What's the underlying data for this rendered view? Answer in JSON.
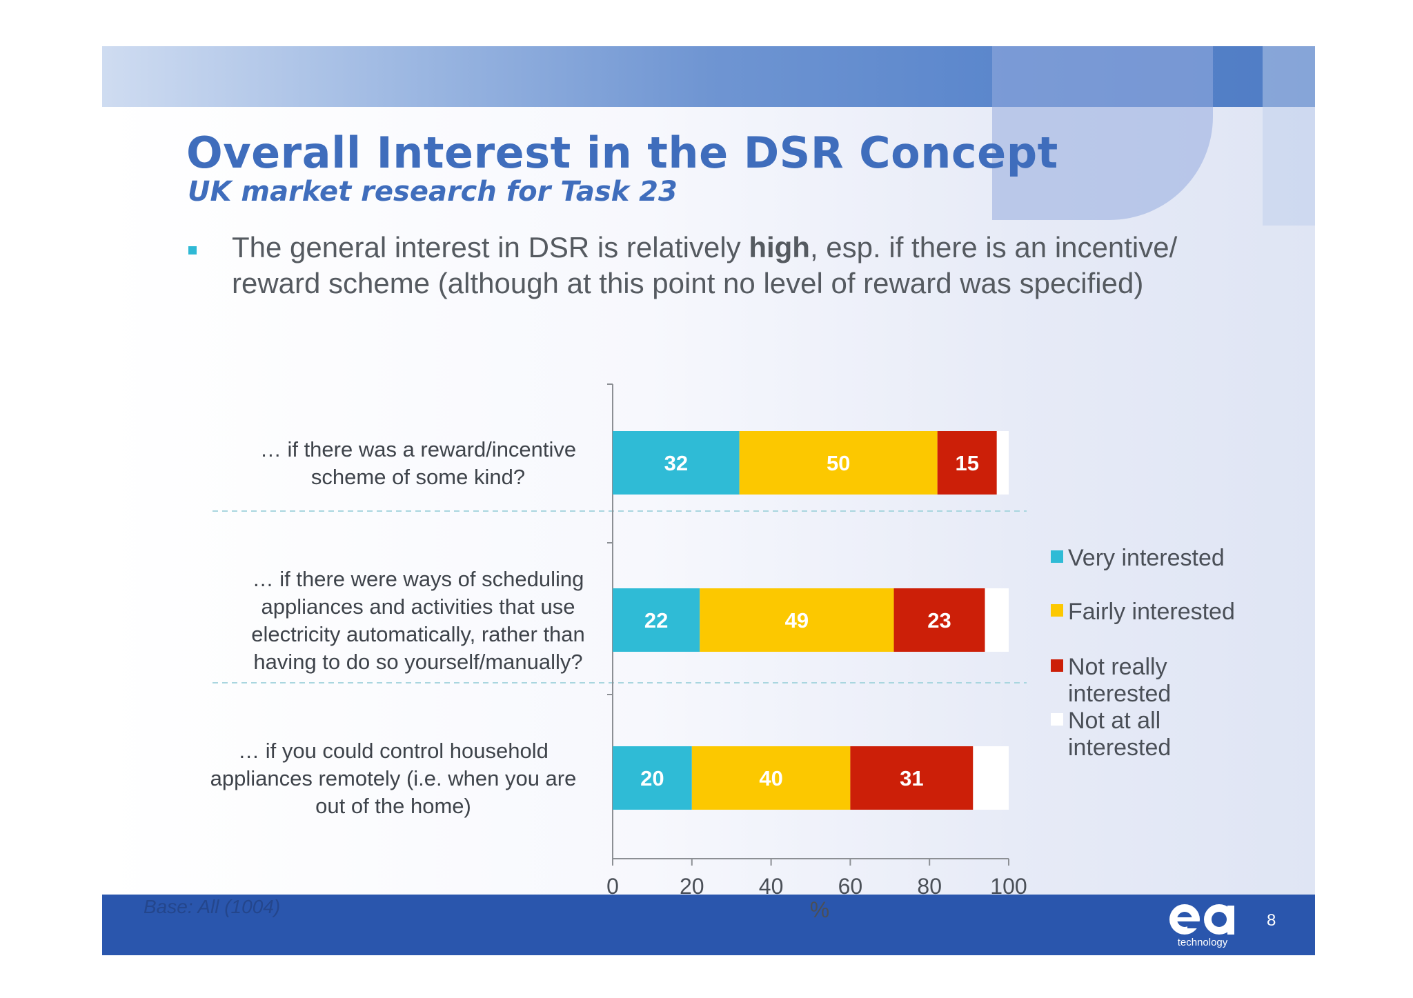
{
  "slide": {
    "title": "Overall Interest in the DSR Concept",
    "subtitle": "UK market research for Task 23",
    "bullet": {
      "before": "The general interest in DSR is relatively ",
      "bold": "high",
      "after": ", esp. if there is an incentive/ reward scheme (although at this point no level of reward was specified)"
    },
    "base_note": "Base: All (1004)",
    "page_number": "8",
    "logo_text": "technology"
  },
  "colors": {
    "very": "#2fbbd6",
    "fairly": "#fcc800",
    "not_really": "#cc1f08",
    "not_at_all": "#ffffff",
    "title": "#3f6dbc",
    "band": "#2a56ad"
  },
  "chart_data": {
    "type": "bar",
    "orientation": "horizontal",
    "stacked": true,
    "categories": [
      [
        "… if there was a reward/incentive",
        "scheme of some kind?"
      ],
      [
        "… if there were ways of scheduling",
        "appliances and activities that use",
        "electricity automatically, rather than",
        "having to do so yourself/manually?"
      ],
      [
        "… if you could control household",
        "appliances remotely (i.e. when you are",
        "out of the home)"
      ]
    ],
    "series": [
      {
        "name": "Very interested",
        "color": "#2fbbd6",
        "values": [
          32,
          22,
          20
        ],
        "show_labels": true
      },
      {
        "name": "Fairly interested",
        "color": "#fcc800",
        "values": [
          50,
          49,
          40
        ],
        "show_labels": true
      },
      {
        "name": "Not really interested",
        "color": "#cc1f08",
        "values": [
          15,
          23,
          31
        ],
        "show_labels": true
      },
      {
        "name": "Not at all interested",
        "color": "#ffffff",
        "values": [
          3,
          6,
          9
        ],
        "show_labels": false
      }
    ],
    "xlabel": "%",
    "xlim": [
      0,
      100
    ],
    "xticks": [
      0,
      20,
      40,
      60,
      80,
      100
    ],
    "legend": {
      "position": "right",
      "items": [
        [
          "Very interested"
        ],
        [
          "Fairly interested"
        ],
        [
          "Not really",
          "interested"
        ],
        [
          "Not at all",
          "interested"
        ]
      ]
    }
  }
}
